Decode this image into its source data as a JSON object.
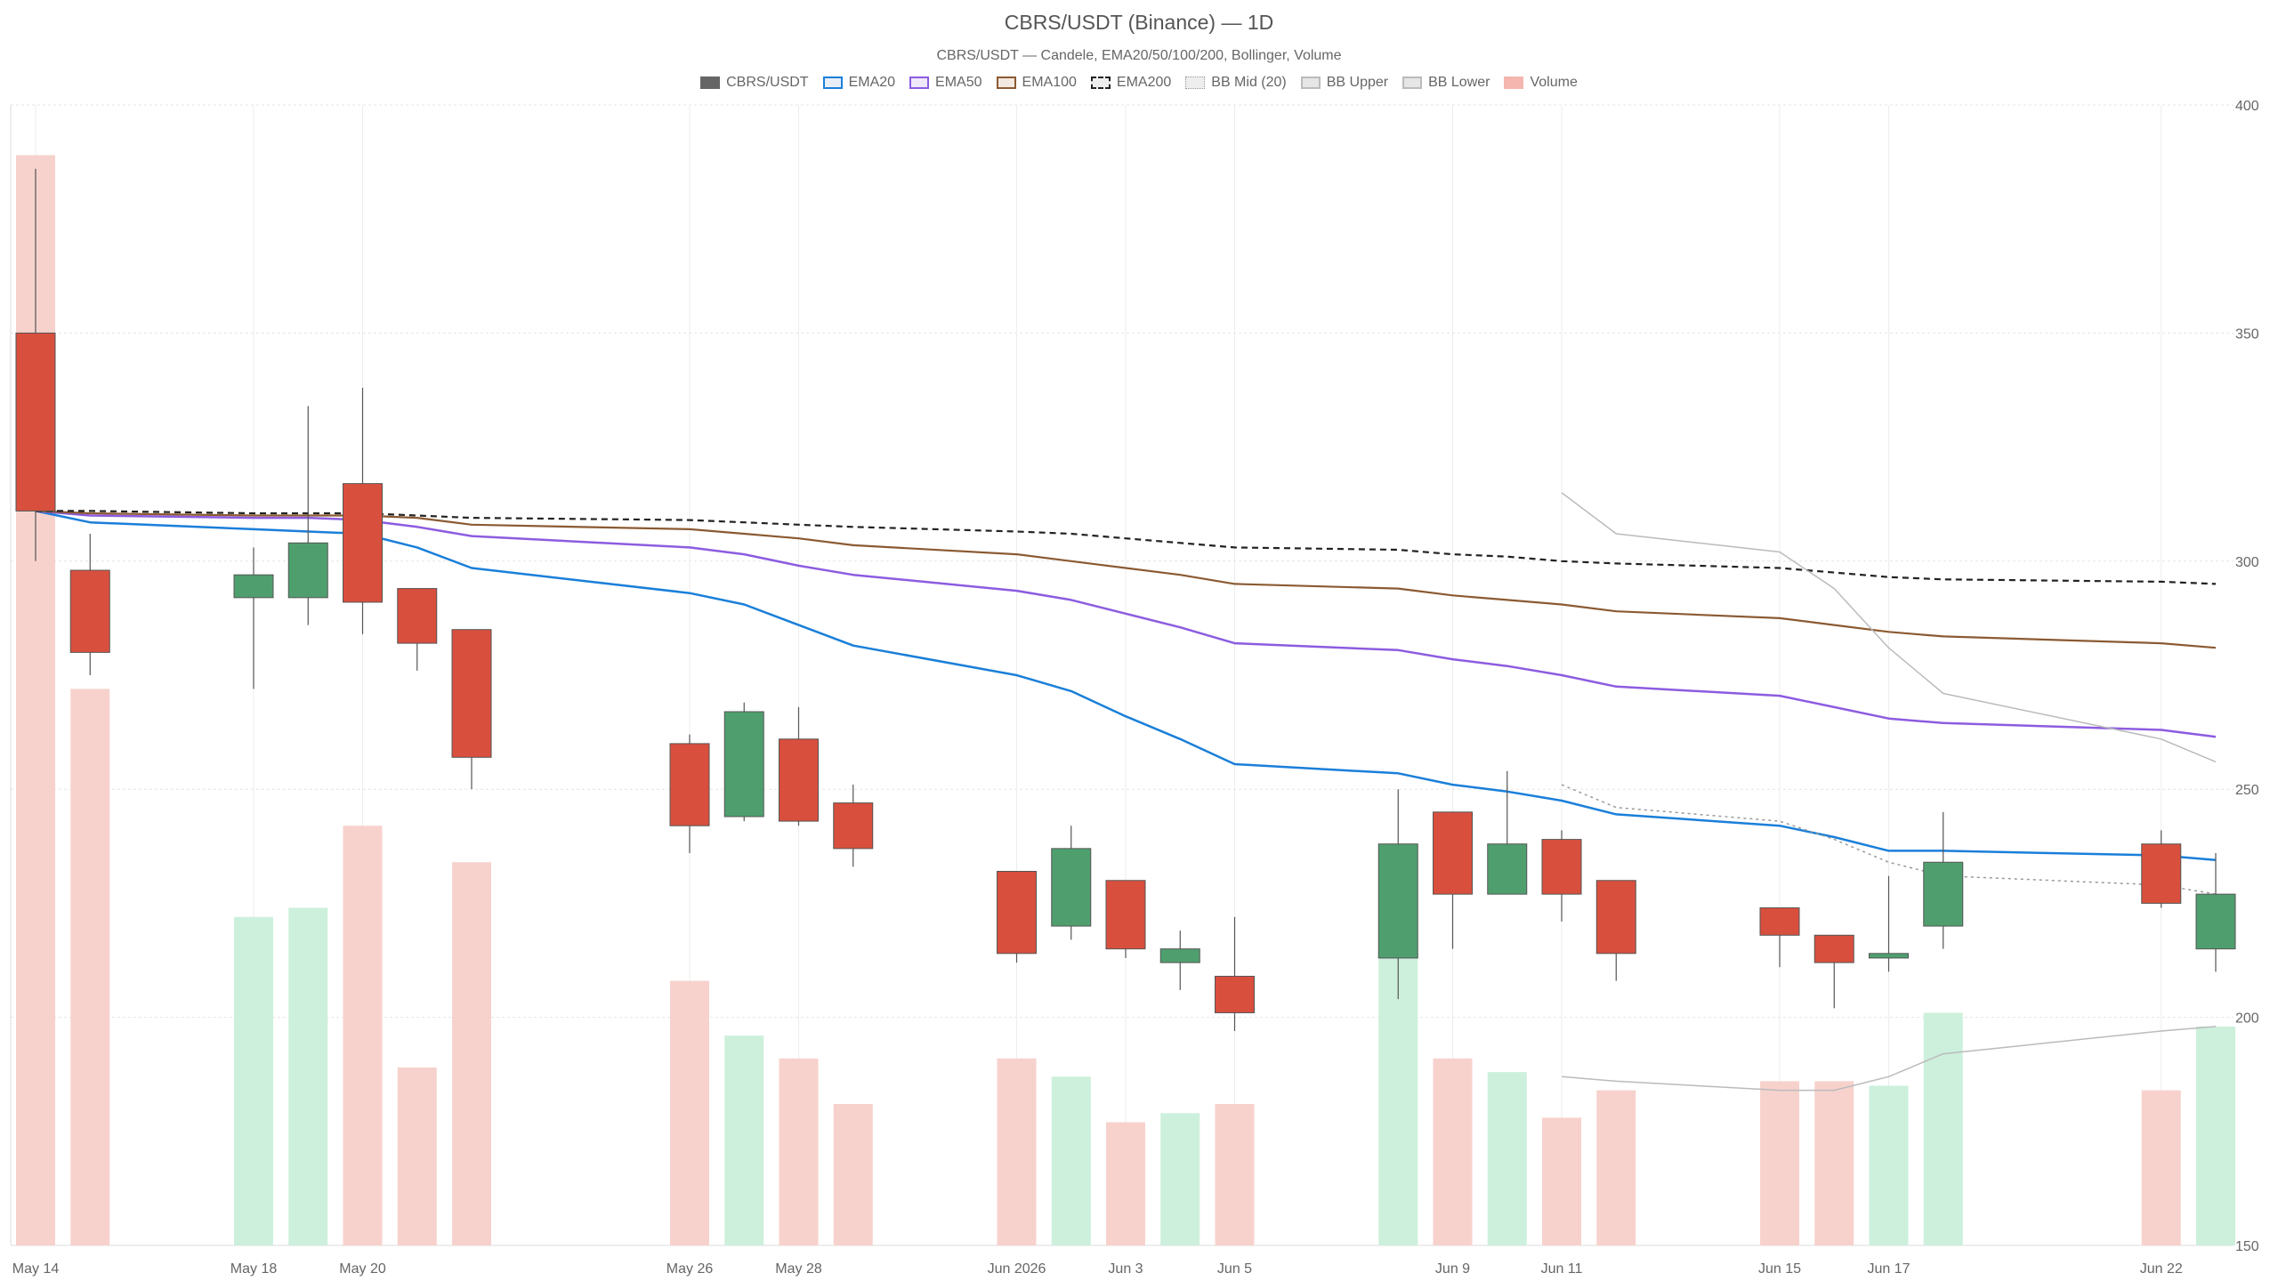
{
  "chart_data": {
    "type": "candlestick",
    "title": "CBRS/USDT (Binance) — 1D",
    "subtitle": "CBRS/USDT — Candele, EMA20/50/100/200, Bollinger, Volume",
    "ylim": [
      150,
      400
    ],
    "y_ticks": [
      150,
      200,
      250,
      300,
      350,
      400
    ],
    "grid": true,
    "legend_position": "top-center",
    "x_axis": {
      "start_date": "2026-05-14",
      "end_date": "2026-06-23",
      "tick_labels": [
        {
          "date": "2026-05-14",
          "label": "May 14"
        },
        {
          "date": "2026-05-18",
          "label": "May 18"
        },
        {
          "date": "2026-05-20",
          "label": "May 20"
        },
        {
          "date": "2026-05-26",
          "label": "May 26"
        },
        {
          "date": "2026-05-28",
          "label": "May 28"
        },
        {
          "date": "2026-06-01",
          "label": "Jun 2026"
        },
        {
          "date": "2026-06-03",
          "label": "Jun 3"
        },
        {
          "date": "2026-06-05",
          "label": "Jun 5"
        },
        {
          "date": "2026-06-09",
          "label": "Jun 9"
        },
        {
          "date": "2026-06-11",
          "label": "Jun 11"
        },
        {
          "date": "2026-06-15",
          "label": "Jun 15"
        },
        {
          "date": "2026-06-17",
          "label": "Jun 17"
        },
        {
          "date": "2026-06-22",
          "label": "Jun 22"
        }
      ]
    },
    "legend": [
      {
        "key": "candles",
        "label": "CBRS/USDT",
        "color": "#666666",
        "style": "solid"
      },
      {
        "key": "ema20",
        "label": "EMA20",
        "color": "#1a7fd9",
        "style": "outline"
      },
      {
        "key": "ema50",
        "label": "EMA50",
        "color": "#8c5ce0",
        "style": "outline"
      },
      {
        "key": "ema100",
        "label": "EMA100",
        "color": "#8b5a32",
        "style": "outline"
      },
      {
        "key": "ema200",
        "label": "EMA200",
        "color": "#222222",
        "style": "dashed"
      },
      {
        "key": "bb_mid",
        "label": "BB Mid (20)",
        "color": "#999999",
        "style": "dotted"
      },
      {
        "key": "bb_upper",
        "label": "BB Upper",
        "color": "#bbbbbb",
        "style": "outline"
      },
      {
        "key": "bb_lower",
        "label": "BB Lower",
        "color": "#bbbbbb",
        "style": "outline"
      },
      {
        "key": "volume",
        "label": "Volume",
        "color": "#f4b6ae",
        "style": "solid"
      }
    ],
    "colors": {
      "up": "#4f9f6e",
      "down": "#d94f3d",
      "volume_up": "#ccf0dc",
      "volume_down": "#f7d2cd",
      "wick": "#555555",
      "grid": "#e6e6e6"
    },
    "candles": [
      {
        "date": "2026-05-14",
        "open": 350,
        "high": 386,
        "low": 300,
        "close": 311,
        "volume": 389
      },
      {
        "date": "2026-05-15",
        "open": 298,
        "high": 306,
        "low": 275,
        "close": 280,
        "volume": 272
      },
      {
        "date": "2026-05-18",
        "open": 292,
        "high": 303,
        "low": 272,
        "close": 297,
        "volume": 222
      },
      {
        "date": "2026-05-19",
        "open": 292,
        "high": 334,
        "low": 286,
        "close": 304,
        "volume": 224
      },
      {
        "date": "2026-05-20",
        "open": 317,
        "high": 338,
        "low": 284,
        "close": 291,
        "volume": 242
      },
      {
        "date": "2026-05-21",
        "open": 294,
        "high": 294,
        "low": 276,
        "close": 282,
        "volume": 189
      },
      {
        "date": "2026-05-22",
        "open": 285,
        "high": 285,
        "low": 250,
        "close": 257,
        "volume": 234
      },
      {
        "date": "2026-05-26",
        "open": 260,
        "high": 262,
        "low": 236,
        "close": 242,
        "volume": 208
      },
      {
        "date": "2026-05-27",
        "open": 244,
        "high": 269,
        "low": 243,
        "close": 267,
        "volume": 196
      },
      {
        "date": "2026-05-28",
        "open": 261,
        "high": 268,
        "low": 242,
        "close": 243,
        "volume": 191
      },
      {
        "date": "2026-05-29",
        "open": 247,
        "high": 251,
        "low": 233,
        "close": 237,
        "volume": 181
      },
      {
        "date": "2026-06-01",
        "open": 232,
        "high": 232,
        "low": 212,
        "close": 214,
        "volume": 191
      },
      {
        "date": "2026-06-02",
        "open": 220,
        "high": 242,
        "low": 217,
        "close": 237,
        "volume": 187
      },
      {
        "date": "2026-06-03",
        "open": 230,
        "high": 230,
        "low": 213,
        "close": 215,
        "volume": 177
      },
      {
        "date": "2026-06-04",
        "open": 212,
        "high": 219,
        "low": 206,
        "close": 215,
        "volume": 179
      },
      {
        "date": "2026-06-05",
        "open": 209,
        "high": 222,
        "low": 197,
        "close": 201,
        "volume": 181
      },
      {
        "date": "2026-06-08",
        "open": 213,
        "high": 250,
        "low": 204,
        "close": 238,
        "volume": 213
      },
      {
        "date": "2026-06-09",
        "open": 245,
        "high": 245,
        "low": 215,
        "close": 227,
        "volume": 191
      },
      {
        "date": "2026-06-10",
        "open": 227,
        "high": 254,
        "low": 227,
        "close": 238,
        "volume": 188
      },
      {
        "date": "2026-06-11",
        "open": 239,
        "high": 241,
        "low": 221,
        "close": 227,
        "volume": 178
      },
      {
        "date": "2026-06-12",
        "open": 230,
        "high": 230,
        "low": 208,
        "close": 214,
        "volume": 184
      },
      {
        "date": "2026-06-15",
        "open": 224,
        "high": 224,
        "low": 211,
        "close": 218,
        "volume": 186
      },
      {
        "date": "2026-06-16",
        "open": 218,
        "high": 218,
        "low": 202,
        "close": 212,
        "volume": 186
      },
      {
        "date": "2026-06-17",
        "open": 213,
        "high": 231,
        "low": 210,
        "close": 214,
        "volume": 185
      },
      {
        "date": "2026-06-18",
        "open": 220,
        "high": 245,
        "low": 215,
        "close": 234,
        "volume": 201
      },
      {
        "date": "2026-06-22",
        "open": 238,
        "high": 241,
        "low": 224,
        "close": 225,
        "volume": 184
      },
      {
        "date": "2026-06-23",
        "open": 215,
        "high": 236,
        "low": 210,
        "close": 227,
        "volume": 198
      }
    ],
    "series": [
      {
        "key": "ema20",
        "name": "EMA20",
        "points": [
          [
            "2026-05-14",
            311
          ],
          [
            "2026-05-15",
            308.5
          ],
          [
            "2026-05-18",
            307
          ],
          [
            "2026-05-19",
            306.5
          ],
          [
            "2026-05-20",
            306
          ],
          [
            "2026-05-21",
            303
          ],
          [
            "2026-05-22",
            298.5
          ],
          [
            "2026-05-26",
            293
          ],
          [
            "2026-05-27",
            290.5
          ],
          [
            "2026-05-28",
            286
          ],
          [
            "2026-05-29",
            281.5
          ],
          [
            "2026-06-01",
            275
          ],
          [
            "2026-06-02",
            271.5
          ],
          [
            "2026-06-03",
            266
          ],
          [
            "2026-06-04",
            261
          ],
          [
            "2026-06-05",
            255.5
          ],
          [
            "2026-06-08",
            253.5
          ],
          [
            "2026-06-09",
            251
          ],
          [
            "2026-06-10",
            249.5
          ],
          [
            "2026-06-11",
            247.5
          ],
          [
            "2026-06-12",
            244.5
          ],
          [
            "2026-06-15",
            242
          ],
          [
            "2026-06-16",
            239.5
          ],
          [
            "2026-06-17",
            236.5
          ],
          [
            "2026-06-18",
            236.5
          ],
          [
            "2026-06-22",
            235.5
          ],
          [
            "2026-06-23",
            234.5
          ]
        ]
      },
      {
        "key": "ema50",
        "name": "EMA50",
        "points": [
          [
            "2026-05-14",
            311
          ],
          [
            "2026-05-15",
            310
          ],
          [
            "2026-05-18",
            309.5
          ],
          [
            "2026-05-19",
            309.5
          ],
          [
            "2026-05-20",
            309
          ],
          [
            "2026-05-21",
            307.5
          ],
          [
            "2026-05-22",
            305.5
          ],
          [
            "2026-05-26",
            303
          ],
          [
            "2026-05-27",
            301.5
          ],
          [
            "2026-05-28",
            299
          ],
          [
            "2026-05-29",
            297
          ],
          [
            "2026-06-01",
            293.5
          ],
          [
            "2026-06-02",
            291.5
          ],
          [
            "2026-06-03",
            288.5
          ],
          [
            "2026-06-04",
            285.5
          ],
          [
            "2026-06-05",
            282
          ],
          [
            "2026-06-08",
            280.5
          ],
          [
            "2026-06-09",
            278.5
          ],
          [
            "2026-06-10",
            277
          ],
          [
            "2026-06-11",
            275
          ],
          [
            "2026-06-12",
            272.5
          ],
          [
            "2026-06-15",
            270.5
          ],
          [
            "2026-06-16",
            268
          ],
          [
            "2026-06-17",
            265.5
          ],
          [
            "2026-06-18",
            264.5
          ],
          [
            "2026-06-22",
            263
          ],
          [
            "2026-06-23",
            261.5
          ]
        ]
      },
      {
        "key": "ema100",
        "name": "EMA100",
        "points": [
          [
            "2026-05-14",
            311
          ],
          [
            "2026-05-15",
            310.5
          ],
          [
            "2026-05-18",
            310
          ],
          [
            "2026-05-19",
            310
          ],
          [
            "2026-05-20",
            310
          ],
          [
            "2026-05-21",
            309.5
          ],
          [
            "2026-05-22",
            308
          ],
          [
            "2026-05-26",
            307
          ],
          [
            "2026-05-27",
            306
          ],
          [
            "2026-05-28",
            305
          ],
          [
            "2026-05-29",
            303.5
          ],
          [
            "2026-06-01",
            301.5
          ],
          [
            "2026-06-02",
            300
          ],
          [
            "2026-06-03",
            298.5
          ],
          [
            "2026-06-04",
            297
          ],
          [
            "2026-06-05",
            295
          ],
          [
            "2026-06-08",
            294
          ],
          [
            "2026-06-09",
            292.5
          ],
          [
            "2026-06-10",
            291.5
          ],
          [
            "2026-06-11",
            290.5
          ],
          [
            "2026-06-12",
            289
          ],
          [
            "2026-06-15",
            287.5
          ],
          [
            "2026-06-16",
            286
          ],
          [
            "2026-06-17",
            284.5
          ],
          [
            "2026-06-18",
            283.5
          ],
          [
            "2026-06-22",
            282
          ],
          [
            "2026-06-23",
            281
          ]
        ]
      },
      {
        "key": "ema200",
        "name": "EMA200",
        "points": [
          [
            "2026-05-14",
            311
          ],
          [
            "2026-05-15",
            311
          ],
          [
            "2026-05-18",
            310.5
          ],
          [
            "2026-05-19",
            310.5
          ],
          [
            "2026-05-20",
            310.5
          ],
          [
            "2026-05-21",
            310
          ],
          [
            "2026-05-22",
            309.5
          ],
          [
            "2026-05-26",
            309
          ],
          [
            "2026-05-27",
            308.5
          ],
          [
            "2026-05-28",
            308
          ],
          [
            "2026-05-29",
            307.5
          ],
          [
            "2026-06-01",
            306.5
          ],
          [
            "2026-06-02",
            306
          ],
          [
            "2026-06-03",
            305
          ],
          [
            "2026-06-04",
            304
          ],
          [
            "2026-06-05",
            303
          ],
          [
            "2026-06-08",
            302.5
          ],
          [
            "2026-06-09",
            301.5
          ],
          [
            "2026-06-10",
            301
          ],
          [
            "2026-06-11",
            300
          ],
          [
            "2026-06-12",
            299.5
          ],
          [
            "2026-06-15",
            298.5
          ],
          [
            "2026-06-16",
            297.5
          ],
          [
            "2026-06-17",
            296.5
          ],
          [
            "2026-06-18",
            296
          ],
          [
            "2026-06-22",
            295.5
          ],
          [
            "2026-06-23",
            295
          ]
        ]
      },
      {
        "key": "bb_mid",
        "name": "BB Mid (20)",
        "points": [
          [
            "2026-06-11",
            251
          ],
          [
            "2026-06-12",
            246
          ],
          [
            "2026-06-15",
            243
          ],
          [
            "2026-06-16",
            239
          ],
          [
            "2026-06-17",
            234
          ],
          [
            "2026-06-18",
            231
          ],
          [
            "2026-06-22",
            229
          ],
          [
            "2026-06-23",
            227
          ]
        ]
      },
      {
        "key": "bb_upper",
        "name": "BB Upper",
        "points": [
          [
            "2026-06-11",
            315
          ],
          [
            "2026-06-12",
            306
          ],
          [
            "2026-06-15",
            302
          ],
          [
            "2026-06-16",
            294
          ],
          [
            "2026-06-17",
            281
          ],
          [
            "2026-06-18",
            271
          ],
          [
            "2026-06-22",
            261
          ],
          [
            "2026-06-23",
            256
          ]
        ]
      },
      {
        "key": "bb_lower",
        "name": "BB Lower",
        "points": [
          [
            "2026-06-11",
            187
          ],
          [
            "2026-06-12",
            186
          ],
          [
            "2026-06-15",
            184
          ],
          [
            "2026-06-16",
            184
          ],
          [
            "2026-06-17",
            187
          ],
          [
            "2026-06-18",
            192
          ],
          [
            "2026-06-22",
            197
          ],
          [
            "2026-06-23",
            198
          ]
        ]
      }
    ]
  }
}
